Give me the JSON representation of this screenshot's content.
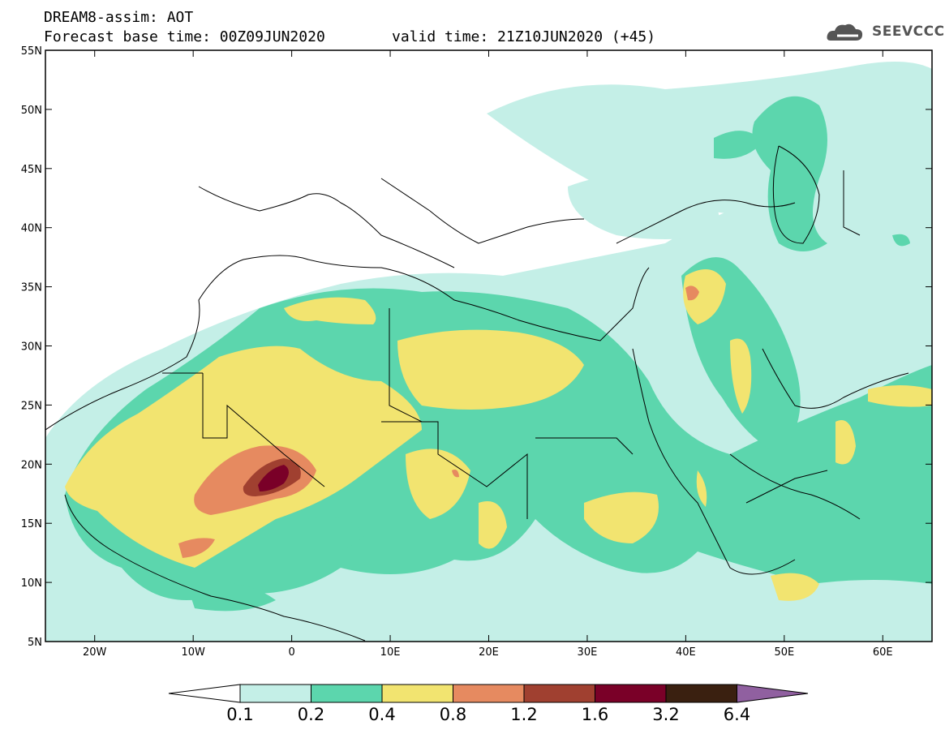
{
  "header": {
    "line1": "DREAM8-assim: AOT",
    "base": "Forecast base time: 00Z09JUN2020",
    "valid": "valid time: 21Z10JUN2020 (+45)"
  },
  "logo": {
    "text": "SEEVCCC",
    "icon": "cloud-icon"
  },
  "map": {
    "lon_range": [
      -25,
      65
    ],
    "lat_range": [
      5,
      55
    ],
    "lat_ticks": [
      "55N",
      "50N",
      "45N",
      "40N",
      "35N",
      "30N",
      "25N",
      "20N",
      "15N",
      "10N",
      "5N"
    ],
    "lon_ticks": [
      "20W",
      "10W",
      "0",
      "10E",
      "20E",
      "30E",
      "40E",
      "50E",
      "60E"
    ],
    "max_region": "Mali/Algeria border, ~20N 0E"
  },
  "colorbar": {
    "labels": [
      "0.1",
      "0.2",
      "0.4",
      "0.8",
      "1.2",
      "1.6",
      "3.2",
      "6.4"
    ],
    "colors": [
      "#c4efe7",
      "#5cd6ad",
      "#f2e470",
      "#e68a60",
      "#a04030",
      "#7a0028",
      "#3a2010",
      "#9060a0"
    ]
  }
}
